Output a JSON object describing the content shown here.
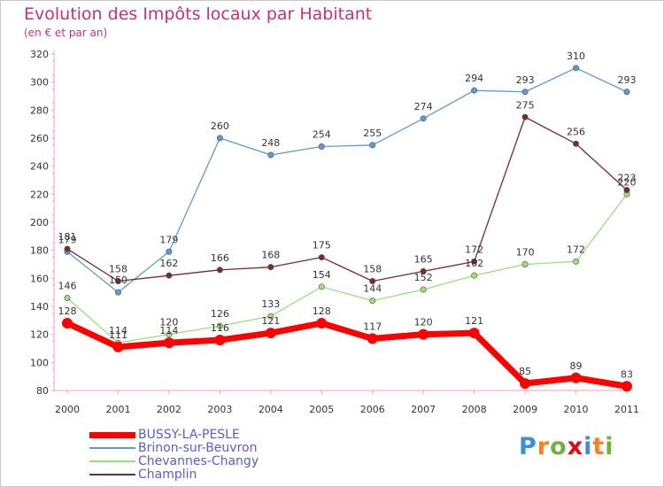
{
  "chart_data": {
    "type": "line",
    "title": "Evolution des Impôts locaux par Habitant",
    "subtitle": "(en € et par an)",
    "xlabel": "",
    "ylabel": "",
    "categories": [
      "2000",
      "2001",
      "2002",
      "2003",
      "2004",
      "2005",
      "2006",
      "2007",
      "2008",
      "2009",
      "2010",
      "2011"
    ],
    "ylim": [
      80,
      320
    ],
    "yticks": [
      80,
      100,
      120,
      140,
      160,
      180,
      200,
      220,
      240,
      260,
      280,
      300,
      320
    ],
    "grid": false,
    "legend_position": "bottom-left",
    "series": [
      {
        "name": "BUSSY-LA-PESLE",
        "color": "#ff0000",
        "values": [
          128,
          111,
          114,
          116,
          121,
          128,
          117,
          120,
          121,
          85,
          89,
          83
        ]
      },
      {
        "name": "Brinon-sur-Beuvron",
        "color": "#5b9bd5",
        "values": [
          179,
          150,
          179,
          260,
          248,
          254,
          255,
          274,
          294,
          293,
          310,
          293
        ]
      },
      {
        "name": "Chevannes-Changy",
        "color": "#99e07a",
        "values": [
          146,
          114,
          120,
          126,
          133,
          154,
          144,
          152,
          162,
          170,
          172,
          220
        ]
      },
      {
        "name": "Champlin",
        "color": "#7a2a2e",
        "values": [
          181,
          158,
          162,
          166,
          168,
          175,
          158,
          165,
          172,
          275,
          256,
          223
        ]
      }
    ]
  },
  "logo": {
    "letters": [
      "P",
      "r",
      "o",
      "x",
      "i",
      "t",
      "i"
    ],
    "colors": [
      "#3a8fd8",
      "#f58220",
      "#6cb33f",
      "#e30613",
      "#3a8fd8",
      "#f58220",
      "#6cb33f"
    ],
    "alt": "Proxiti"
  }
}
